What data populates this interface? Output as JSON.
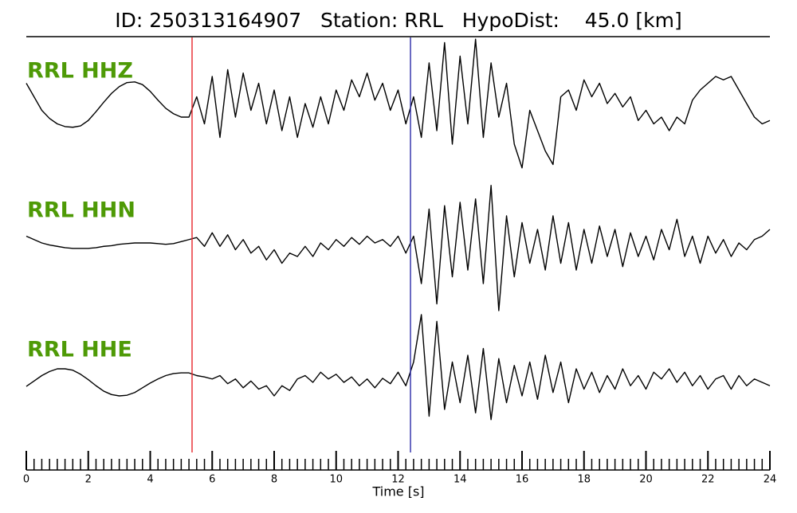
{
  "chart_data": {
    "type": "line",
    "title": "ID: 250313164907   Station: RRL   HypoDist:    45.0 [km]",
    "xlabel": "Time [s]",
    "xlim": [
      0,
      24
    ],
    "xticks": [
      0,
      2,
      4,
      6,
      8,
      10,
      12,
      14,
      16,
      18,
      20,
      22,
      24
    ],
    "xminor": 0.25,
    "label_color": "#4e9a06",
    "markers": [
      {
        "x": 5.35,
        "color": "#e8262a"
      },
      {
        "x": 12.4,
        "color": "#2b2ba8"
      }
    ],
    "x": [
      0,
      0.25,
      0.5,
      0.75,
      1,
      1.25,
      1.5,
      1.75,
      2,
      2.25,
      2.5,
      2.75,
      3,
      3.25,
      3.5,
      3.75,
      4,
      4.25,
      4.5,
      4.75,
      5,
      5.25,
      5.5,
      5.75,
      6,
      6.25,
      6.5,
      6.75,
      7,
      7.25,
      7.5,
      7.75,
      8,
      8.25,
      8.5,
      8.75,
      9,
      9.25,
      9.5,
      9.75,
      10,
      10.25,
      10.5,
      10.75,
      11,
      11.25,
      11.5,
      11.75,
      12,
      12.25,
      12.5,
      12.75,
      13,
      13.25,
      13.5,
      13.75,
      14,
      14.25,
      14.5,
      14.75,
      15,
      15.25,
      15.5,
      15.75,
      16,
      16.25,
      16.5,
      16.75,
      17,
      17.25,
      17.5,
      17.75,
      18,
      18.25,
      18.5,
      18.75,
      19,
      19.25,
      19.5,
      19.75,
      20,
      20.25,
      20.5,
      20.75,
      21,
      21.25,
      21.5,
      21.75,
      22,
      22.25,
      22.5,
      22.75,
      23,
      23.25,
      23.5,
      23.75,
      24
    ],
    "series": [
      {
        "name": "RRL HHZ",
        "color": "#000000",
        "values": [
          0.3,
          0.1,
          -0.1,
          -0.22,
          -0.3,
          -0.34,
          -0.35,
          -0.33,
          -0.25,
          -0.12,
          0.02,
          0.15,
          0.25,
          0.31,
          0.32,
          0.28,
          0.18,
          0.05,
          -0.07,
          -0.15,
          -0.2,
          -0.2,
          0.1,
          -0.3,
          0.4,
          -0.5,
          0.5,
          -0.2,
          0.45,
          -0.1,
          0.3,
          -0.3,
          0.2,
          -0.4,
          0.1,
          -0.5,
          0,
          -0.35,
          0.1,
          -0.3,
          0.2,
          -0.1,
          0.35,
          0.1,
          0.45,
          0.05,
          0.3,
          -0.1,
          0.2,
          -0.3,
          0.1,
          -0.5,
          0.6,
          -0.4,
          0.9,
          -0.6,
          0.7,
          -0.3,
          0.95,
          -0.5,
          0.6,
          -0.2,
          0.3,
          -0.6,
          -0.95,
          -0.1,
          -0.4,
          -0.7,
          -0.9,
          0.1,
          0.2,
          -0.1,
          0.35,
          0.1,
          0.3,
          0,
          0.15,
          -0.05,
          0.1,
          -0.25,
          -0.1,
          -0.3,
          -0.2,
          -0.4,
          -0.2,
          -0.3,
          0.05,
          0.2,
          0.3,
          0.4,
          0.35,
          0.4,
          0.2,
          0,
          -0.2,
          -0.3,
          -0.25
        ]
      },
      {
        "name": "RRL HHN",
        "color": "#000000",
        "values": [
          0.1,
          0.05,
          0,
          -0.03,
          -0.05,
          -0.07,
          -0.08,
          -0.08,
          -0.08,
          -0.07,
          -0.05,
          -0.04,
          -0.02,
          -0.01,
          0,
          0,
          0,
          -0.01,
          -0.02,
          -0.01,
          0.02,
          0.05,
          0.08,
          -0.05,
          0.15,
          -0.05,
          0.12,
          -0.1,
          0.05,
          -0.15,
          -0.05,
          -0.25,
          -0.1,
          -0.3,
          -0.15,
          -0.2,
          -0.05,
          -0.2,
          0,
          -0.1,
          0.05,
          -0.05,
          0.08,
          -0.02,
          0.1,
          0,
          0.05,
          -0.05,
          0.1,
          -0.15,
          0.1,
          -0.6,
          0.5,
          -0.9,
          0.55,
          -0.5,
          0.6,
          -0.4,
          0.65,
          -0.6,
          0.85,
          -1.0,
          0.4,
          -0.5,
          0.3,
          -0.3,
          0.2,
          -0.4,
          0.4,
          -0.3,
          0.3,
          -0.4,
          0.2,
          -0.3,
          0.25,
          -0.2,
          0.2,
          -0.35,
          0.15,
          -0.2,
          0.1,
          -0.25,
          0.2,
          -0.1,
          0.35,
          -0.2,
          0.1,
          -0.3,
          0.1,
          -0.15,
          0.05,
          -0.2,
          0,
          -0.1,
          0.05,
          0.1,
          0.2
        ]
      },
      {
        "name": "RRL HHE",
        "color": "#000000",
        "values": [
          -0.06,
          0.02,
          0.1,
          0.16,
          0.2,
          0.2,
          0.18,
          0.12,
          0.04,
          -0.05,
          -0.13,
          -0.18,
          -0.2,
          -0.19,
          -0.15,
          -0.08,
          -0.01,
          0.05,
          0.1,
          0.13,
          0.14,
          0.14,
          0.1,
          0.08,
          0.05,
          0.1,
          -0.02,
          0.05,
          -0.08,
          0.02,
          -0.1,
          -0.05,
          -0.2,
          -0.05,
          -0.12,
          0.05,
          0.1,
          0,
          0.15,
          0.05,
          0.12,
          0,
          0.08,
          -0.05,
          0.05,
          -0.08,
          0.06,
          -0.02,
          0.15,
          -0.05,
          0.3,
          1.0,
          -0.5,
          0.9,
          -0.4,
          0.3,
          -0.3,
          0.4,
          -0.45,
          0.5,
          -0.55,
          0.35,
          -0.3,
          0.25,
          -0.2,
          0.3,
          -0.25,
          0.4,
          -0.15,
          0.3,
          -0.3,
          0.2,
          -0.1,
          0.15,
          -0.15,
          0.1,
          -0.1,
          0.2,
          -0.05,
          0.1,
          -0.1,
          0.15,
          0.05,
          0.2,
          0,
          0.15,
          -0.05,
          0.1,
          -0.1,
          0.05,
          0.1,
          -0.1,
          0.1,
          -0.05,
          0.05,
          0,
          -0.05
        ]
      }
    ]
  }
}
